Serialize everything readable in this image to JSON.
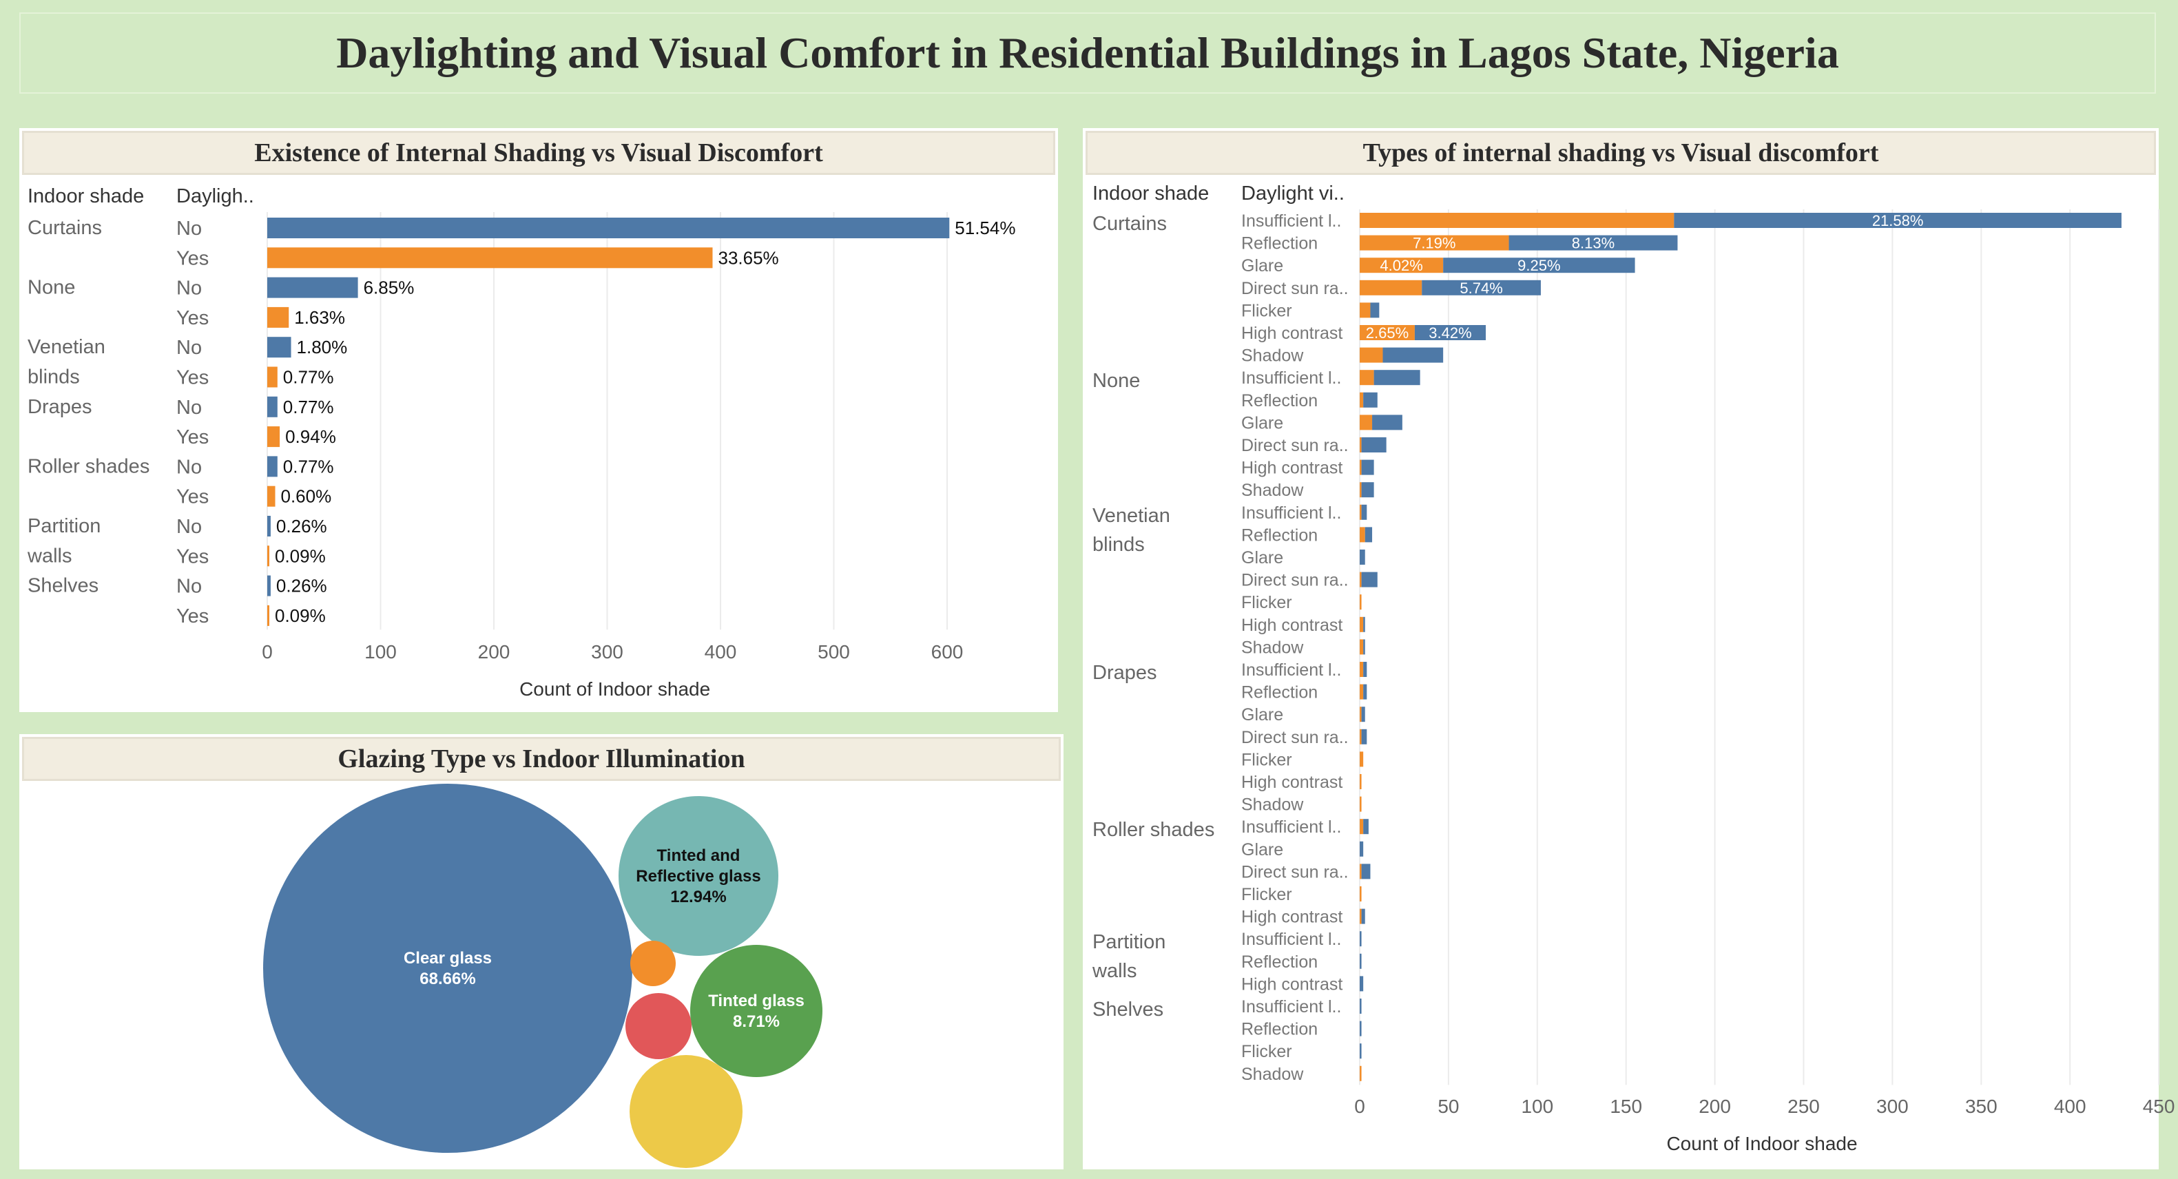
{
  "dashboard_title": "Daylighting and Visual Comfort in Residential Buildings in Lagos State, Nigeria",
  "colors": {
    "no": "#4e79a7",
    "yes": "#f28e2b",
    "teal": "#76b7b2",
    "green": "#59a14f",
    "red": "#e15759",
    "yellow": "#edc948",
    "grid": "#ebebeb"
  },
  "chart_data": [
    {
      "id": "existence",
      "type": "bar",
      "orientation": "horizontal",
      "title": "Existence of Internal Shading vs Visual Discomfort",
      "header_labels": [
        "Indoor shade",
        "Dayligh.."
      ],
      "xlabel": "Count of Indoor shade",
      "xlim": [
        0,
        650
      ],
      "xticks": [
        0,
        100,
        200,
        300,
        400,
        500,
        600
      ],
      "groups": [
        {
          "label": [
            "Curtains"
          ],
          "rows": [
            {
              "daylight": "No",
              "value": 602,
              "label": "51.54%"
            },
            {
              "daylight": "Yes",
              "value": 393,
              "label": "33.65%"
            }
          ]
        },
        {
          "label": [
            "None"
          ],
          "rows": [
            {
              "daylight": "No",
              "value": 80,
              "label": "6.85%"
            },
            {
              "daylight": "Yes",
              "value": 19,
              "label": "1.63%"
            }
          ]
        },
        {
          "label": [
            "Venetian",
            "blinds"
          ],
          "rows": [
            {
              "daylight": "No",
              "value": 21,
              "label": "1.80%"
            },
            {
              "daylight": "Yes",
              "value": 9,
              "label": "0.77%"
            }
          ]
        },
        {
          "label": [
            "Drapes"
          ],
          "rows": [
            {
              "daylight": "No",
              "value": 9,
              "label": "0.77%"
            },
            {
              "daylight": "Yes",
              "value": 11,
              "label": "0.94%"
            }
          ]
        },
        {
          "label": [
            "Roller shades"
          ],
          "rows": [
            {
              "daylight": "No",
              "value": 9,
              "label": "0.77%"
            },
            {
              "daylight": "Yes",
              "value": 7,
              "label": "0.60%"
            }
          ]
        },
        {
          "label": [
            "Partition",
            "walls"
          ],
          "rows": [
            {
              "daylight": "No",
              "value": 3,
              "label": "0.26%"
            },
            {
              "daylight": "Yes",
              "value": 1,
              "label": "0.09%"
            }
          ]
        },
        {
          "label": [
            "Shelves"
          ],
          "rows": [
            {
              "daylight": "No",
              "value": 3,
              "label": "0.26%"
            },
            {
              "daylight": "Yes",
              "value": 1,
              "label": "0.09%"
            }
          ]
        }
      ]
    },
    {
      "id": "bubbles",
      "type": "bubble",
      "title": "Glazing Type vs Indoor Illumination",
      "bubbles": [
        {
          "name": "Clear glass",
          "pct": "68.66%",
          "value": 68.66,
          "color": "#4e79a7"
        },
        {
          "name": "Tinted and Reflective glass",
          "name_lines": [
            "Tinted and",
            "Reflective glass"
          ],
          "pct": "12.94%",
          "value": 12.94,
          "color": "#76b7b2"
        },
        {
          "name": "Tinted glass",
          "pct": "8.71%",
          "value": 8.71,
          "color": "#59a14f"
        },
        {
          "name": "",
          "pct": "",
          "value": 6.4,
          "color": "#edc948"
        },
        {
          "name": "",
          "pct": "",
          "value": 2.2,
          "color": "#e15759"
        },
        {
          "name": "",
          "pct": "",
          "value": 1.1,
          "color": "#f28e2b"
        }
      ]
    },
    {
      "id": "types",
      "type": "bar",
      "orientation": "horizontal",
      "stacked": true,
      "title": "Types of internal shading vs Visual discomfort",
      "header_labels": [
        "Indoor shade",
        "Daylight vi.."
      ],
      "xlabel": "Count of Indoor shade",
      "xlim": [
        0,
        440
      ],
      "xticks": [
        0,
        50,
        100,
        150,
        200,
        250,
        300,
        350,
        400,
        450
      ],
      "series": [
        {
          "key": "yes",
          "color": "#f28e2b"
        },
        {
          "key": "no",
          "color": "#4e79a7"
        }
      ],
      "groups": [
        {
          "label": [
            "Curtains"
          ],
          "rows": [
            {
              "cat": "Insufficient l..",
              "yes": 177,
              "no": 252,
              "yes_label": "",
              "no_label": "21.58%"
            },
            {
              "cat": "Reflection",
              "yes": 84,
              "no": 95,
              "yes_label": "7.19%",
              "no_label": "8.13%"
            },
            {
              "cat": "Glare",
              "yes": 47,
              "no": 108,
              "yes_label": "4.02%",
              "no_label": "9.25%"
            },
            {
              "cat": "Direct sun ra..",
              "yes": 35,
              "no": 67,
              "yes_label": "",
              "no_label": "5.74%"
            },
            {
              "cat": "Flicker",
              "yes": 6,
              "no": 5,
              "yes_label": "",
              "no_label": ""
            },
            {
              "cat": "High contrast",
              "yes": 31,
              "no": 40,
              "yes_label": "2.65%",
              "no_label": "3.42%"
            },
            {
              "cat": "Shadow",
              "yes": 13,
              "no": 34,
              "yes_label": "",
              "no_label": ""
            }
          ]
        },
        {
          "label": [
            "None"
          ],
          "rows": [
            {
              "cat": "Insufficient l..",
              "yes": 8,
              "no": 26
            },
            {
              "cat": "Reflection",
              "yes": 2,
              "no": 8
            },
            {
              "cat": "Glare",
              "yes": 7,
              "no": 17
            },
            {
              "cat": "Direct sun ra..",
              "yes": 1,
              "no": 14
            },
            {
              "cat": "High contrast",
              "yes": 1,
              "no": 7
            },
            {
              "cat": "Shadow",
              "yes": 1,
              "no": 7
            }
          ]
        },
        {
          "label": [
            "Venetian",
            "blinds"
          ],
          "rows": [
            {
              "cat": "Insufficient l..",
              "yes": 1,
              "no": 3
            },
            {
              "cat": "Reflection",
              "yes": 3,
              "no": 4
            },
            {
              "cat": "Glare",
              "yes": 0,
              "no": 3
            },
            {
              "cat": "Direct sun ra..",
              "yes": 1,
              "no": 9
            },
            {
              "cat": "Flicker",
              "yes": 1,
              "no": 0
            },
            {
              "cat": "High contrast",
              "yes": 2,
              "no": 1
            },
            {
              "cat": "Shadow",
              "yes": 2,
              "no": 1
            }
          ]
        },
        {
          "label": [
            "Drapes"
          ],
          "rows": [
            {
              "cat": "Insufficient l..",
              "yes": 2,
              "no": 2
            },
            {
              "cat": "Reflection",
              "yes": 2,
              "no": 2
            },
            {
              "cat": "Glare",
              "yes": 1,
              "no": 2
            },
            {
              "cat": "Direct sun ra..",
              "yes": 1,
              "no": 3
            },
            {
              "cat": "Flicker",
              "yes": 2,
              "no": 0
            },
            {
              "cat": "High contrast",
              "yes": 1,
              "no": 0
            },
            {
              "cat": "Shadow",
              "yes": 1,
              "no": 0
            }
          ]
        },
        {
          "label": [
            "Roller shades"
          ],
          "rows": [
            {
              "cat": "Insufficient l..",
              "yes": 2,
              "no": 3
            },
            {
              "cat": "Glare",
              "yes": 0,
              "no": 2
            },
            {
              "cat": "Direct sun ra..",
              "yes": 1,
              "no": 5
            },
            {
              "cat": "Flicker",
              "yes": 1,
              "no": 0
            },
            {
              "cat": "High contrast",
              "yes": 1,
              "no": 2
            }
          ]
        },
        {
          "label": [
            "Partition",
            "walls"
          ],
          "rows": [
            {
              "cat": "Insufficient l..",
              "yes": 0,
              "no": 1
            },
            {
              "cat": "Reflection",
              "yes": 0,
              "no": 1
            },
            {
              "cat": "High contrast",
              "yes": 0,
              "no": 2
            }
          ]
        },
        {
          "label": [
            "Shelves"
          ],
          "rows": [
            {
              "cat": "Insufficient l..",
              "yes": 0,
              "no": 1
            },
            {
              "cat": "Reflection",
              "yes": 0,
              "no": 1
            },
            {
              "cat": "Flicker",
              "yes": 0,
              "no": 1
            },
            {
              "cat": "Shadow",
              "yes": 1,
              "no": 0
            }
          ]
        }
      ]
    }
  ]
}
